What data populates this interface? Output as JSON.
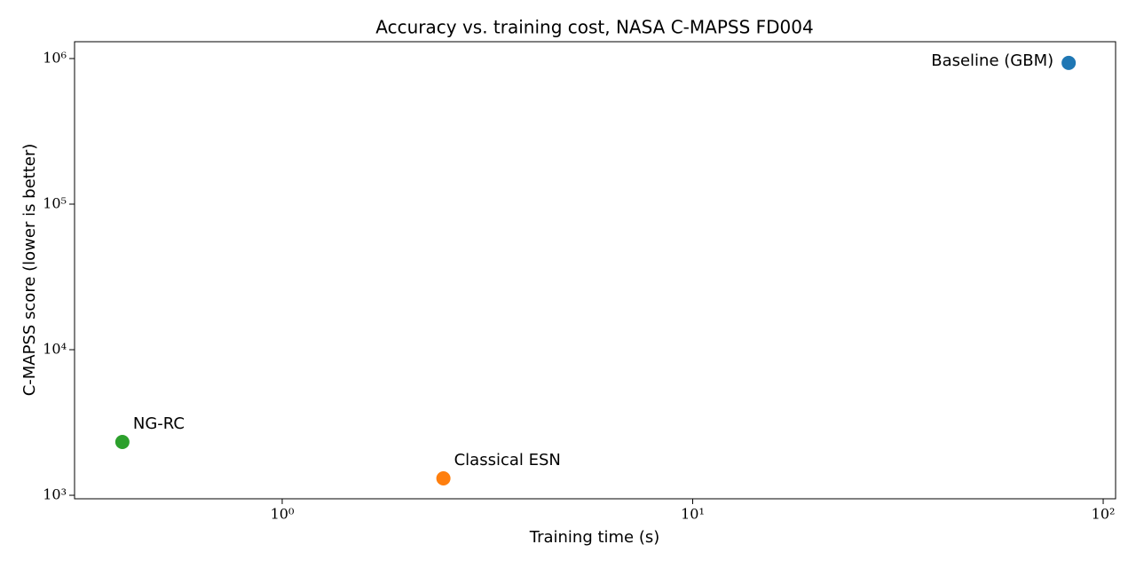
{
  "chart_data": {
    "type": "scatter",
    "title": "Accuracy vs. training cost, NASA C-MAPSS FD004",
    "x_label": "Training time (s)",
    "y_label": "C-MAPSS score (lower is better)",
    "x_scale": "log",
    "y_scale": "log",
    "xlim": [
      0.312,
      107.2
    ],
    "ylim": [
      946,
      1305000
    ],
    "xticks": [
      {
        "value": 1,
        "label": "10⁰"
      },
      {
        "value": 10,
        "label": "10¹"
      },
      {
        "value": 100,
        "label": "10²"
      }
    ],
    "yticks": [
      {
        "value": 1000,
        "label": "10³"
      },
      {
        "value": 10000,
        "label": "10⁴"
      },
      {
        "value": 100000,
        "label": "10⁵"
      },
      {
        "value": 1000000,
        "label": "10⁶"
      }
    ],
    "series": [
      {
        "name": "Baseline (GBM)",
        "color": "#1f77b4",
        "x": [
          82.4
        ],
        "values": [
          933000
        ]
      },
      {
        "name": "Classical ESN",
        "color": "#ff7f0e",
        "x": [
          2.47
        ],
        "values": [
          1306
        ]
      },
      {
        "name": "NG-RC",
        "color": "#2ca02c",
        "x": [
          0.408
        ],
        "values": [
          2323
        ]
      }
    ]
  }
}
